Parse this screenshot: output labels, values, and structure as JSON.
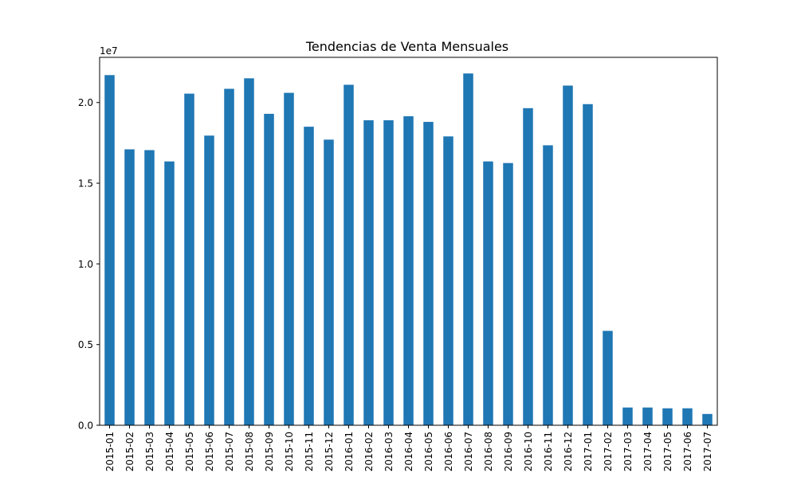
{
  "chart_data": {
    "type": "bar",
    "title": "Tendencias de Venta Mensuales",
    "xlabel": "",
    "ylabel": "",
    "y_offset_label": "1e7",
    "ylim": [
      0,
      22800000
    ],
    "grid": false,
    "legend": "none",
    "bar_color": "#1f77b4",
    "y_ticks": [
      {
        "value": 0,
        "label": "0.0"
      },
      {
        "value": 5000000,
        "label": "0.5"
      },
      {
        "value": 10000000,
        "label": "1.0"
      },
      {
        "value": 15000000,
        "label": "1.5"
      },
      {
        "value": 20000000,
        "label": "2.0"
      }
    ],
    "categories": [
      "2015-01",
      "2015-02",
      "2015-03",
      "2015-04",
      "2015-05",
      "2015-06",
      "2015-07",
      "2015-08",
      "2015-09",
      "2015-10",
      "2015-11",
      "2015-12",
      "2016-01",
      "2016-02",
      "2016-03",
      "2016-04",
      "2016-05",
      "2016-06",
      "2016-07",
      "2016-08",
      "2016-09",
      "2016-10",
      "2016-11",
      "2016-12",
      "2017-01",
      "2017-02",
      "2017-03",
      "2017-04",
      "2017-05",
      "2017-06",
      "2017-07"
    ],
    "values": [
      21700000,
      17100000,
      17050000,
      16350000,
      20550000,
      17950000,
      20850000,
      21500000,
      19300000,
      20600000,
      18500000,
      17700000,
      21100000,
      18900000,
      18900000,
      19150000,
      18800000,
      17900000,
      21800000,
      16350000,
      16250000,
      19650000,
      17350000,
      21050000,
      19900000,
      5850000,
      1100000,
      1100000,
      1050000,
      1050000,
      700000
    ]
  }
}
